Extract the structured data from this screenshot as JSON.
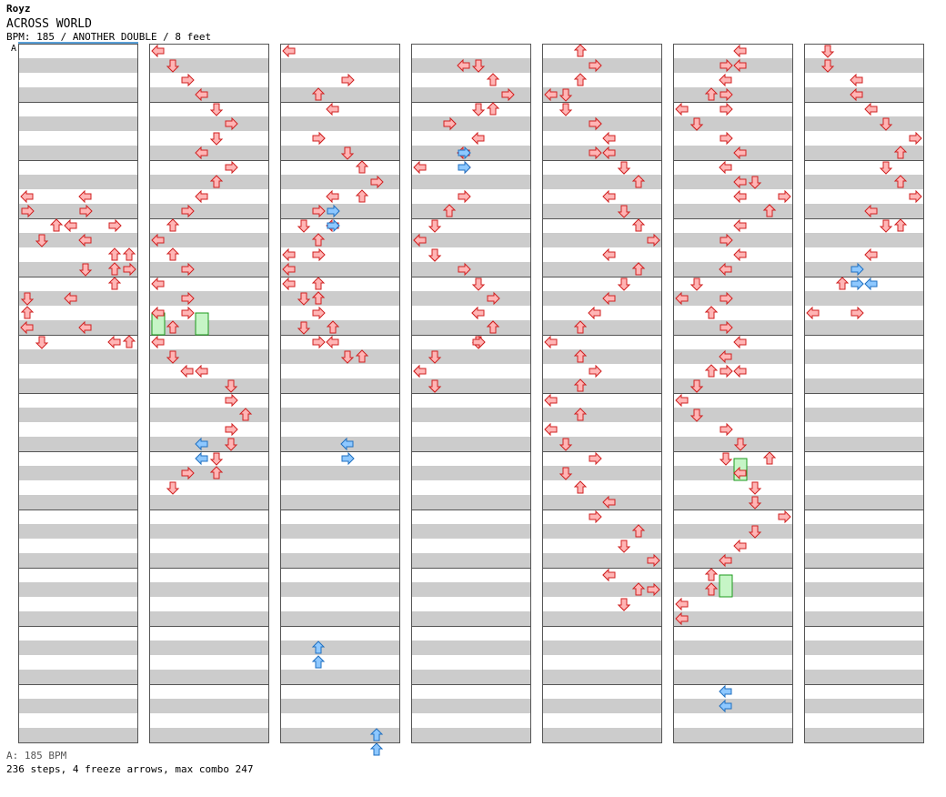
{
  "header": {
    "artist": "Royz",
    "title": "ACROSS WORLD",
    "info": "BPM: 185 / ANOTHER DOUBLE / 8 feet"
  },
  "bpm_marker": "A",
  "footer": {
    "bpm_legend": "A: 185 BPM",
    "summary": "236 steps, 4 freeze arrows, max combo 247"
  },
  "colors": {
    "stripe": "#cccccc",
    "lane_border": "#555555",
    "note": "#ffb5b5",
    "note_stroke": "#d02020",
    "quarter_note": "#8ec8ff",
    "quarter_stroke": "#1f6fc0",
    "freeze": "#c6f5c6",
    "freeze_stroke": "#1c9a1c"
  },
  "chart_data": {
    "type": "step-chart",
    "columns": 7,
    "measures_per_column": 12,
    "panels": [
      "L-left",
      "L-down",
      "L-up",
      "L-right",
      "R-left",
      "R-down",
      "R-up",
      "R-right"
    ],
    "notes": [
      [
        0,
        10,
        0,
        "left"
      ],
      [
        0,
        10,
        4,
        "left"
      ],
      [
        0,
        11,
        0,
        "right"
      ],
      [
        0,
        11,
        4,
        "right"
      ],
      [
        0,
        12,
        2,
        "up"
      ],
      [
        0,
        12,
        3,
        "left"
      ],
      [
        0,
        12,
        6,
        "right"
      ],
      [
        0,
        13,
        1,
        "down"
      ],
      [
        0,
        13,
        4,
        "left"
      ],
      [
        0,
        14,
        6,
        "up"
      ],
      [
        0,
        14,
        7,
        "up"
      ],
      [
        0,
        15,
        4,
        "down"
      ],
      [
        0,
        15,
        6,
        "up"
      ],
      [
        0,
        15,
        7,
        "right"
      ],
      [
        0,
        16,
        6,
        "up"
      ],
      [
        0,
        17,
        0,
        "down"
      ],
      [
        0,
        17,
        3,
        "left"
      ],
      [
        0,
        18,
        0,
        "up"
      ],
      [
        0,
        19,
        0,
        "left"
      ],
      [
        0,
        19,
        4,
        "left"
      ],
      [
        0,
        20,
        1,
        "down"
      ],
      [
        0,
        20,
        6,
        "left"
      ],
      [
        0,
        20,
        7,
        "up"
      ],
      [
        1,
        0,
        0,
        "left"
      ],
      [
        1,
        1,
        1,
        "down"
      ],
      [
        1,
        2,
        2,
        "right"
      ],
      [
        1,
        3,
        3,
        "left"
      ],
      [
        1,
        4,
        4,
        "down"
      ],
      [
        1,
        5,
        5,
        "right"
      ],
      [
        1,
        6,
        4,
        "down"
      ],
      [
        1,
        7,
        3,
        "left"
      ],
      [
        1,
        8,
        5,
        "right"
      ],
      [
        1,
        9,
        4,
        "up"
      ],
      [
        1,
        10,
        3,
        "left"
      ],
      [
        1,
        11,
        2,
        "right"
      ],
      [
        1,
        12,
        1,
        "up"
      ],
      [
        1,
        13,
        0,
        "left"
      ],
      [
        1,
        14,
        1,
        "up"
      ],
      [
        1,
        15,
        2,
        "right"
      ],
      [
        1,
        16,
        0,
        "left"
      ],
      [
        1,
        17,
        2,
        "right"
      ],
      [
        1,
        18,
        0,
        "left"
      ],
      [
        1,
        18,
        2,
        "right"
      ],
      [
        1,
        19,
        1,
        "up"
      ],
      [
        1,
        20,
        0,
        "left"
      ],
      [
        1,
        21,
        1,
        "down"
      ],
      [
        1,
        22,
        2,
        "left"
      ],
      [
        1,
        22,
        3,
        "left"
      ],
      [
        1,
        23,
        5,
        "down"
      ],
      [
        1,
        24,
        5,
        "right"
      ],
      [
        1,
        25,
        6,
        "up"
      ],
      [
        1,
        26,
        5,
        "right"
      ],
      [
        1,
        27,
        5,
        "down"
      ],
      [
        1,
        28,
        4,
        "down"
      ],
      [
        1,
        29,
        2,
        "right"
      ],
      [
        1,
        29,
        4,
        "up"
      ],
      [
        1,
        30,
        1,
        "down"
      ],
      [
        2,
        0,
        0,
        "left"
      ],
      [
        2,
        2,
        4,
        "right"
      ],
      [
        2,
        3,
        2,
        "up"
      ],
      [
        2,
        4,
        3,
        "left"
      ],
      [
        2,
        6,
        2,
        "right"
      ],
      [
        2,
        6,
        2,
        "right"
      ],
      [
        2,
        7,
        4,
        "down"
      ],
      [
        2,
        8,
        5,
        "up"
      ],
      [
        2,
        9,
        6,
        "right"
      ],
      [
        2,
        10,
        3,
        "left"
      ],
      [
        2,
        10,
        5,
        "up"
      ],
      [
        2,
        11,
        2,
        "right"
      ],
      [
        2,
        12,
        1,
        "down"
      ],
      [
        2,
        12,
        3,
        "left"
      ],
      [
        2,
        13,
        2,
        "up"
      ],
      [
        2,
        14,
        0,
        "left"
      ],
      [
        2,
        14,
        2,
        "right"
      ],
      [
        2,
        15,
        0,
        "left"
      ],
      [
        2,
        16,
        2,
        "up"
      ],
      [
        2,
        16,
        0,
        "left"
      ],
      [
        2,
        17,
        1,
        "down"
      ],
      [
        2,
        17,
        2,
        "up"
      ],
      [
        2,
        17,
        2,
        "up"
      ],
      [
        2,
        18,
        2,
        "right"
      ],
      [
        2,
        19,
        1,
        "down"
      ],
      [
        2,
        19,
        3,
        "up"
      ],
      [
        2,
        20,
        2,
        "right"
      ],
      [
        2,
        20,
        3,
        "left"
      ],
      [
        2,
        21,
        4,
        "down"
      ],
      [
        2,
        21,
        5,
        "up"
      ],
      [
        3,
        1,
        3,
        "left"
      ],
      [
        3,
        1,
        4,
        "down"
      ],
      [
        3,
        2,
        5,
        "up"
      ],
      [
        3,
        3,
        6,
        "right"
      ],
      [
        3,
        4,
        4,
        "down"
      ],
      [
        3,
        4,
        5,
        "up"
      ],
      [
        3,
        5,
        2,
        "right"
      ],
      [
        3,
        5,
        2,
        "right"
      ],
      [
        3,
        6,
        4,
        "left"
      ],
      [
        3,
        7,
        3,
        "left"
      ],
      [
        3,
        8,
        0,
        "left"
      ],
      [
        3,
        8,
        3,
        "right"
      ],
      [
        3,
        10,
        3,
        "right"
      ],
      [
        3,
        11,
        2,
        "up"
      ],
      [
        3,
        12,
        1,
        "down"
      ],
      [
        3,
        13,
        0,
        "left"
      ],
      [
        3,
        13,
        0,
        "left"
      ],
      [
        3,
        14,
        1,
        "down"
      ],
      [
        3,
        14,
        1,
        "down"
      ],
      [
        3,
        15,
        3,
        "right"
      ],
      [
        3,
        16,
        4,
        "down"
      ],
      [
        3,
        17,
        5,
        "right"
      ],
      [
        3,
        18,
        4,
        "left"
      ],
      [
        3,
        18,
        4,
        "left"
      ],
      [
        3,
        19,
        5,
        "up"
      ],
      [
        3,
        19,
        5,
        "up"
      ],
      [
        3,
        20,
        4,
        "down"
      ],
      [
        3,
        20,
        4,
        "right"
      ],
      [
        3,
        21,
        1,
        "down"
      ],
      [
        3,
        22,
        0,
        "left"
      ],
      [
        3,
        22,
        0,
        "left"
      ],
      [
        3,
        23,
        1,
        "down"
      ],
      [
        3,
        23,
        1,
        "down"
      ],
      [
        4,
        0,
        2,
        "up"
      ],
      [
        4,
        1,
        3,
        "right"
      ],
      [
        4,
        2,
        2,
        "up"
      ],
      [
        4,
        3,
        0,
        "left"
      ],
      [
        4,
        3,
        1,
        "down"
      ],
      [
        4,
        4,
        1,
        "down"
      ],
      [
        4,
        5,
        3,
        "right"
      ],
      [
        4,
        5,
        3,
        "right"
      ],
      [
        4,
        6,
        4,
        "left"
      ],
      [
        4,
        7,
        3,
        "right"
      ],
      [
        4,
        7,
        4,
        "left"
      ],
      [
        4,
        8,
        5,
        "down"
      ],
      [
        4,
        8,
        5,
        "down"
      ],
      [
        4,
        9,
        6,
        "up"
      ],
      [
        4,
        10,
        4,
        "left"
      ],
      [
        4,
        11,
        5,
        "down"
      ],
      [
        4,
        12,
        6,
        "up"
      ],
      [
        4,
        13,
        7,
        "right"
      ],
      [
        4,
        14,
        4,
        "left"
      ],
      [
        4,
        15,
        6,
        "up"
      ],
      [
        4,
        15,
        6,
        "up"
      ],
      [
        4,
        16,
        5,
        "down"
      ],
      [
        4,
        17,
        4,
        "left"
      ],
      [
        4,
        18,
        3,
        "left"
      ],
      [
        4,
        19,
        2,
        "up"
      ],
      [
        4,
        20,
        0,
        "left"
      ],
      [
        4,
        21,
        2,
        "up"
      ],
      [
        4,
        22,
        3,
        "right"
      ],
      [
        4,
        23,
        2,
        "up"
      ],
      [
        4,
        24,
        0,
        "left"
      ],
      [
        4,
        25,
        2,
        "up"
      ],
      [
        4,
        26,
        0,
        "left"
      ],
      [
        4,
        27,
        1,
        "down"
      ],
      [
        4,
        28,
        3,
        "right"
      ],
      [
        4,
        29,
        1,
        "down"
      ],
      [
        4,
        30,
        2,
        "up"
      ],
      [
        4,
        31,
        4,
        "left"
      ],
      [
        4,
        32,
        3,
        "right"
      ],
      [
        4,
        33,
        6,
        "up"
      ],
      [
        4,
        34,
        5,
        "down"
      ],
      [
        4,
        35,
        7,
        "right"
      ],
      [
        4,
        36,
        4,
        "left"
      ],
      [
        4,
        36,
        4,
        "left"
      ],
      [
        4,
        37,
        6,
        "up"
      ],
      [
        4,
        37,
        7,
        "right"
      ],
      [
        4,
        38,
        5,
        "down"
      ],
      [
        4,
        38,
        5,
        "down"
      ],
      [
        5,
        0,
        4,
        "left"
      ],
      [
        5,
        1,
        3,
        "right"
      ],
      [
        5,
        1,
        4,
        "left"
      ],
      [
        5,
        2,
        3,
        "left"
      ],
      [
        5,
        3,
        2,
        "up"
      ],
      [
        5,
        3,
        3,
        "right"
      ],
      [
        5,
        4,
        0,
        "left"
      ],
      [
        5,
        4,
        3,
        "right"
      ],
      [
        5,
        5,
        1,
        "down"
      ],
      [
        5,
        5,
        1,
        "down"
      ],
      [
        5,
        6,
        3,
        "right"
      ],
      [
        5,
        7,
        4,
        "left"
      ],
      [
        5,
        8,
        3,
        "left"
      ],
      [
        5,
        9,
        4,
        "left"
      ],
      [
        5,
        9,
        5,
        "down"
      ],
      [
        5,
        10,
        4,
        "left"
      ],
      [
        5,
        10,
        7,
        "right"
      ],
      [
        5,
        11,
        6,
        "up"
      ],
      [
        5,
        11,
        6,
        "up"
      ],
      [
        5,
        12,
        4,
        "left"
      ],
      [
        5,
        13,
        3,
        "right"
      ],
      [
        5,
        14,
        4,
        "left"
      ],
      [
        5,
        15,
        3,
        "left"
      ],
      [
        5,
        16,
        1,
        "down"
      ],
      [
        5,
        17,
        0,
        "left"
      ],
      [
        5,
        17,
        3,
        "right"
      ],
      [
        5,
        18,
        2,
        "up"
      ],
      [
        5,
        18,
        2,
        "up"
      ],
      [
        5,
        19,
        3,
        "right"
      ],
      [
        5,
        20,
        4,
        "left"
      ],
      [
        5,
        21,
        3,
        "left"
      ],
      [
        5,
        22,
        2,
        "up"
      ],
      [
        5,
        22,
        4,
        "left"
      ],
      [
        5,
        22,
        3,
        "right"
      ],
      [
        5,
        23,
        1,
        "down"
      ],
      [
        5,
        23,
        1,
        "down"
      ],
      [
        5,
        24,
        0,
        "left"
      ],
      [
        5,
        25,
        1,
        "down"
      ],
      [
        5,
        26,
        3,
        "right"
      ],
      [
        5,
        27,
        4,
        "down"
      ],
      [
        5,
        28,
        3,
        "down"
      ],
      [
        5,
        28,
        6,
        "up"
      ],
      [
        5,
        29,
        4,
        "left"
      ],
      [
        5,
        30,
        5,
        "down"
      ],
      [
        5,
        31,
        5,
        "down"
      ],
      [
        5,
        32,
        7,
        "right"
      ],
      [
        5,
        33,
        5,
        "down"
      ],
      [
        5,
        34,
        4,
        "left"
      ],
      [
        5,
        35,
        3,
        "left"
      ],
      [
        5,
        36,
        2,
        "up"
      ],
      [
        5,
        37,
        2,
        "up"
      ],
      [
        5,
        38,
        0,
        "left"
      ],
      [
        5,
        39,
        0,
        "left"
      ],
      [
        6,
        0,
        1,
        "down"
      ],
      [
        6,
        1,
        1,
        "down"
      ],
      [
        6,
        2,
        3,
        "left"
      ],
      [
        6,
        3,
        3,
        "left"
      ],
      [
        6,
        4,
        4,
        "left"
      ],
      [
        6,
        5,
        5,
        "down"
      ],
      [
        6,
        6,
        7,
        "right"
      ],
      [
        6,
        7,
        6,
        "up"
      ],
      [
        6,
        8,
        5,
        "down"
      ],
      [
        6,
        9,
        6,
        "up"
      ],
      [
        6,
        10,
        7,
        "right"
      ],
      [
        6,
        11,
        4,
        "left"
      ],
      [
        6,
        12,
        5,
        "down"
      ],
      [
        6,
        12,
        6,
        "up"
      ],
      [
        6,
        14,
        4,
        "left"
      ],
      [
        6,
        16,
        2,
        "up"
      ],
      [
        6,
        18,
        0,
        "left"
      ],
      [
        6,
        18,
        3,
        "right"
      ]
    ],
    "quarter_notes": [
      [
        2,
        11,
        3,
        "right"
      ],
      [
        2,
        12,
        3,
        "right"
      ],
      [
        3,
        7,
        3,
        "right"
      ],
      [
        3,
        8,
        3,
        "right"
      ],
      [
        6,
        15,
        3,
        "right"
      ],
      [
        6,
        16,
        3,
        "right"
      ],
      [
        6,
        16,
        4,
        "left"
      ],
      [
        1,
        27,
        3,
        "left"
      ],
      [
        1,
        28,
        3,
        "left"
      ],
      [
        2,
        27,
        4,
        "left"
      ],
      [
        2,
        28,
        4,
        "right"
      ],
      [
        5,
        44,
        3,
        "left"
      ],
      [
        5,
        45,
        3,
        "left"
      ],
      [
        2,
        41,
        2,
        "up"
      ],
      [
        2,
        42,
        2,
        "up"
      ],
      [
        2,
        47,
        6,
        "up"
      ],
      [
        2,
        48,
        6,
        "up"
      ]
    ],
    "freezes": [
      [
        1,
        18,
        0,
        19.5
      ],
      [
        1,
        18,
        3,
        19.5
      ],
      [
        5,
        28,
        4,
        29.5
      ],
      [
        5,
        36,
        3,
        37.5
      ]
    ]
  }
}
